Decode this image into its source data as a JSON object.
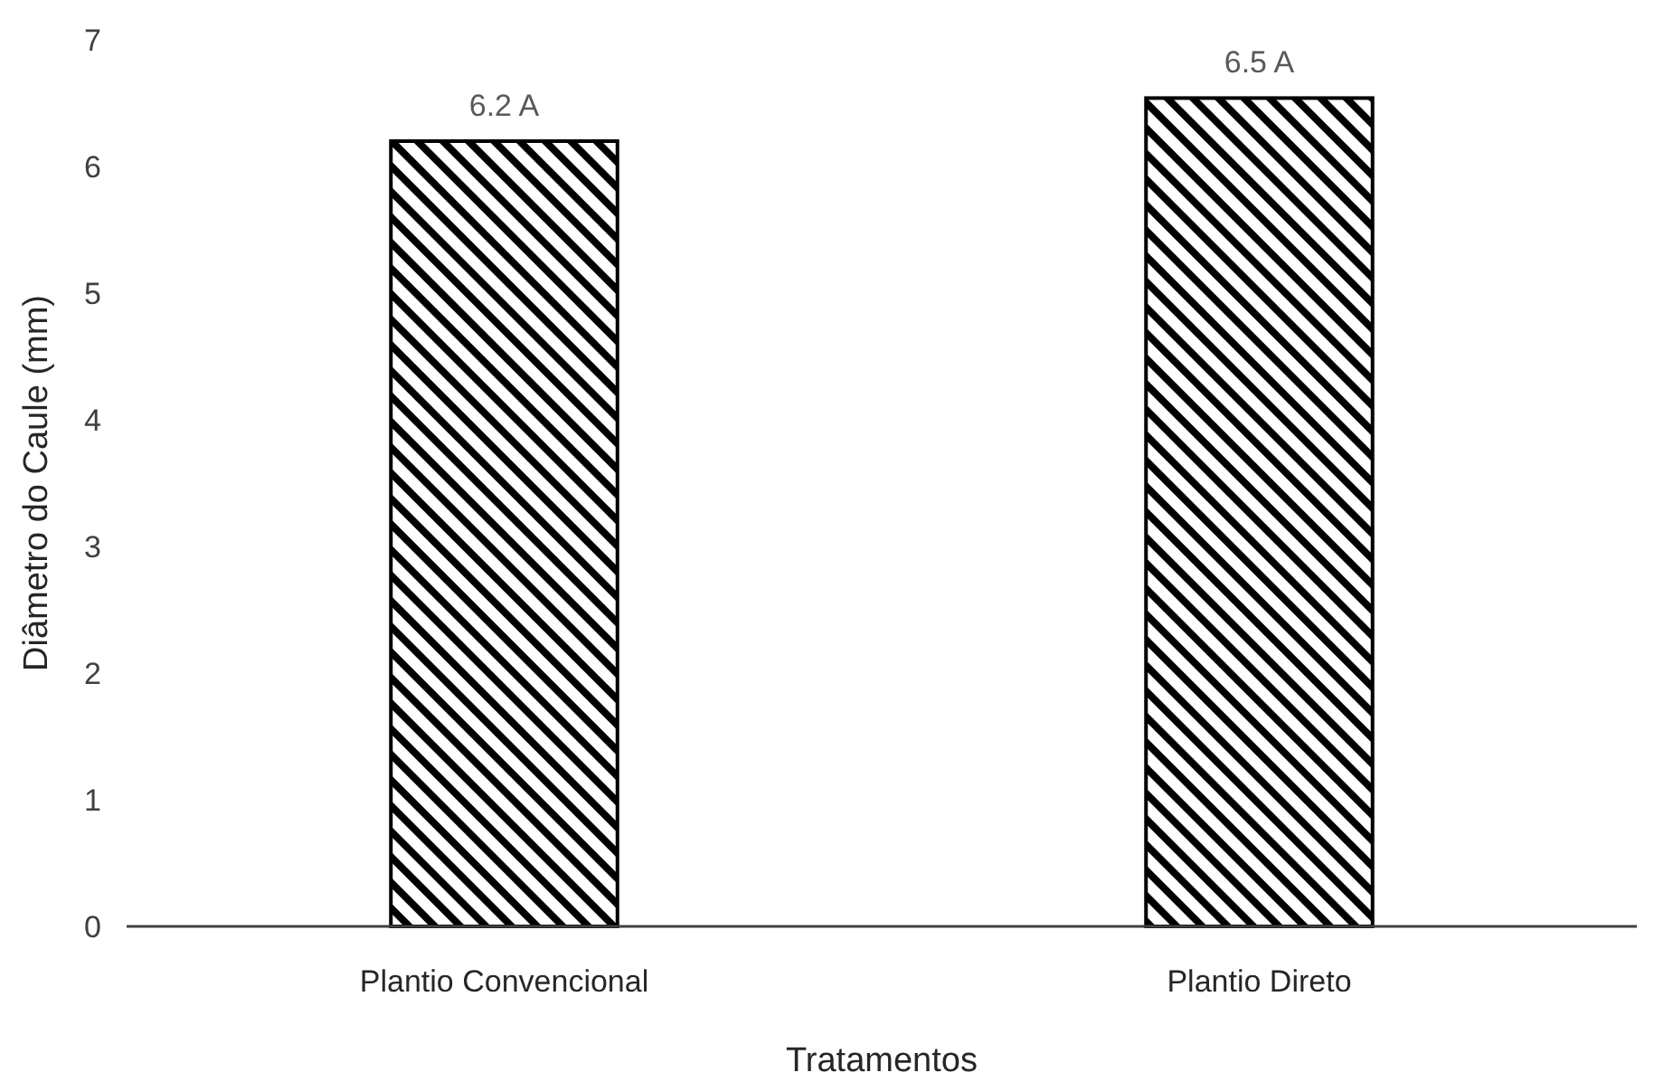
{
  "chart_data": {
    "type": "bar",
    "xlabel": "Tratamentos",
    "ylabel": "Diâmetro do Caule (mm)",
    "categories": [
      "Plantio Convencional",
      "Plantio Direto"
    ],
    "values": [
      6.2,
      6.54
    ],
    "value_labels": [
      "6.2 A",
      "6.5 A"
    ],
    "color": "#000000",
    "ylim": [
      0,
      7
    ],
    "yticks": [
      0,
      1,
      2,
      3,
      4,
      5,
      6,
      7
    ],
    "grid": false
  }
}
